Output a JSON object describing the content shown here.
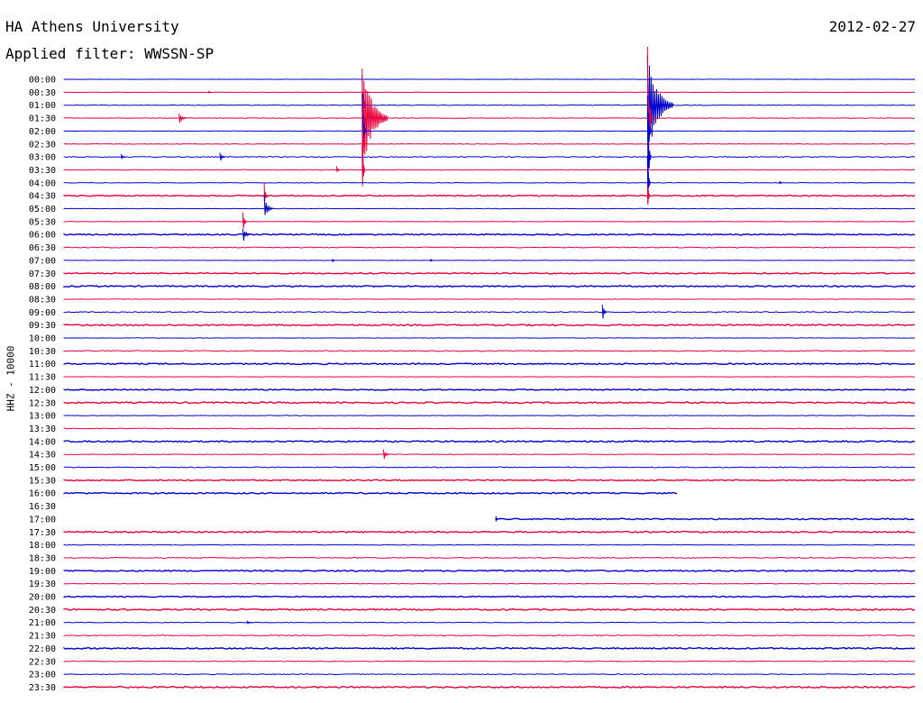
{
  "header": {
    "station": "HA Athens University",
    "date": "2012-02-27",
    "filter": "Applied filter: WWSSN-SP"
  },
  "chart_data": {
    "type": "line",
    "title": "HA Athens University",
    "channel_label": "HHZ - 10000",
    "colors": {
      "odd": "#0000cc",
      "even": "#e8003c"
    },
    "rows": [
      {
        "time": "00:00",
        "end": 1.0,
        "noise": 0.3,
        "events": []
      },
      {
        "time": "00:30",
        "end": 1.0,
        "noise": 0.3,
        "events": [
          {
            "x": 0.17,
            "amp": 2,
            "width": 0.002
          }
        ]
      },
      {
        "time": "01:00",
        "end": 1.0,
        "noise": 0.6,
        "events": [
          {
            "x": 0.35,
            "amp": 55,
            "width": 0.004
          },
          {
            "x": 0.685,
            "amp": 60,
            "width": 0.03
          },
          {
            "x": 0.7,
            "amp": 4,
            "width": 0.004
          }
        ]
      },
      {
        "time": "01:30",
        "end": 1.0,
        "noise": 0.6,
        "events": [
          {
            "x": 0.135,
            "amp": 8,
            "width": 0.008
          },
          {
            "x": 0.35,
            "amp": 65,
            "width": 0.03
          },
          {
            "x": 0.685,
            "amp": 85,
            "width": 0.005
          }
        ]
      },
      {
        "time": "02:00",
        "end": 1.0,
        "noise": 0.5,
        "events": [
          {
            "x": 0.35,
            "amp": 50,
            "width": 0.004
          },
          {
            "x": 0.685,
            "amp": 60,
            "width": 0.004
          }
        ]
      },
      {
        "time": "02:30",
        "end": 1.0,
        "noise": 0.6,
        "events": [
          {
            "x": 0.35,
            "amp": 55,
            "width": 0.003
          }
        ]
      },
      {
        "time": "03:00",
        "end": 1.0,
        "noise": 1.0,
        "events": [
          {
            "x": 0.067,
            "amp": 3,
            "width": 0.005
          },
          {
            "x": 0.183,
            "amp": 7,
            "width": 0.006
          },
          {
            "x": 0.685,
            "amp": 60,
            "width": 0.004
          }
        ]
      },
      {
        "time": "03:30",
        "end": 1.0,
        "noise": 0.6,
        "events": [
          {
            "x": 0.32,
            "amp": 4,
            "width": 0.004
          },
          {
            "x": 0.35,
            "amp": 45,
            "width": 0.003
          }
        ]
      },
      {
        "time": "04:00",
        "end": 1.0,
        "noise": 0.5,
        "events": [
          {
            "x": 0.84,
            "amp": 2,
            "width": 0.003
          },
          {
            "x": 0.685,
            "amp": 40,
            "width": 0.003
          }
        ]
      },
      {
        "time": "04:30",
        "end": 1.0,
        "noise": 1.2,
        "events": [
          {
            "x": 0.235,
            "amp": 14,
            "width": 0.004
          },
          {
            "x": 0.685,
            "amp": 18,
            "width": 0.003
          }
        ]
      },
      {
        "time": "05:00",
        "end": 1.0,
        "noise": 0.6,
        "events": [
          {
            "x": 0.235,
            "amp": 16,
            "width": 0.01
          }
        ]
      },
      {
        "time": "05:30",
        "end": 1.0,
        "noise": 0.4,
        "events": [
          {
            "x": 0.21,
            "amp": 14,
            "width": 0.004
          }
        ]
      },
      {
        "time": "06:00",
        "end": 1.0,
        "noise": 1.2,
        "events": [
          {
            "x": 0.21,
            "amp": 10,
            "width": 0.008
          }
        ]
      },
      {
        "time": "06:30",
        "end": 1.0,
        "noise": 1.0,
        "events": []
      },
      {
        "time": "07:00",
        "end": 1.0,
        "noise": 0.4,
        "events": [
          {
            "x": 0.315,
            "amp": 2,
            "width": 0.003
          },
          {
            "x": 0.43,
            "amp": 2,
            "width": 0.003
          }
        ]
      },
      {
        "time": "07:30",
        "end": 1.0,
        "noise": 1.2,
        "events": []
      },
      {
        "time": "08:00",
        "end": 1.0,
        "noise": 1.4,
        "events": []
      },
      {
        "time": "08:30",
        "end": 1.0,
        "noise": 0.4,
        "events": []
      },
      {
        "time": "09:00",
        "end": 1.0,
        "noise": 1.1,
        "events": [
          {
            "x": 0.632,
            "amp": 12,
            "width": 0.005
          }
        ]
      },
      {
        "time": "09:30",
        "end": 1.0,
        "noise": 1.5,
        "events": []
      },
      {
        "time": "10:00",
        "end": 1.0,
        "noise": 0.5,
        "events": []
      },
      {
        "time": "10:30",
        "end": 1.0,
        "noise": 1.0,
        "events": []
      },
      {
        "time": "11:00",
        "end": 1.0,
        "noise": 1.4,
        "events": []
      },
      {
        "time": "11:30",
        "end": 1.0,
        "noise": 0.4,
        "events": []
      },
      {
        "time": "12:00",
        "end": 1.0,
        "noise": 1.2,
        "events": []
      },
      {
        "time": "12:30",
        "end": 1.0,
        "noise": 1.5,
        "events": []
      },
      {
        "time": "13:00",
        "end": 1.0,
        "noise": 0.6,
        "events": []
      },
      {
        "time": "13:30",
        "end": 1.0,
        "noise": 0.8,
        "events": []
      },
      {
        "time": "14:00",
        "end": 1.0,
        "noise": 1.5,
        "events": []
      },
      {
        "time": "14:30",
        "end": 1.0,
        "noise": 0.6,
        "events": [
          {
            "x": 0.375,
            "amp": 8,
            "width": 0.006
          }
        ]
      },
      {
        "time": "15:00",
        "end": 1.0,
        "noise": 1.0,
        "events": []
      },
      {
        "time": "15:30",
        "end": 1.0,
        "noise": 1.2,
        "events": []
      },
      {
        "time": "16:00",
        "end": 0.72,
        "noise": 1.4,
        "events": []
      },
      {
        "time": "16:30",
        "end": 0.0,
        "noise": 0,
        "events": []
      },
      {
        "time": "17:00",
        "start": 0.507,
        "end": 1.0,
        "noise": 1.4,
        "events": [
          {
            "x": 0.507,
            "amp": 5,
            "width": 0.001
          }
        ]
      },
      {
        "time": "17:30",
        "end": 1.0,
        "noise": 1.5,
        "events": []
      },
      {
        "time": "18:00",
        "end": 1.0,
        "noise": 0.6,
        "events": []
      },
      {
        "time": "18:30",
        "end": 1.0,
        "noise": 1.0,
        "events": []
      },
      {
        "time": "19:00",
        "end": 1.0,
        "noise": 1.4,
        "events": []
      },
      {
        "time": "19:30",
        "end": 1.0,
        "noise": 0.6,
        "events": []
      },
      {
        "time": "20:00",
        "end": 1.0,
        "noise": 1.2,
        "events": []
      },
      {
        "time": "20:30",
        "end": 1.0,
        "noise": 1.5,
        "events": []
      },
      {
        "time": "21:00",
        "end": 1.0,
        "noise": 0.6,
        "events": [
          {
            "x": 0.215,
            "amp": 2,
            "width": 0.006
          }
        ]
      },
      {
        "time": "21:30",
        "end": 1.0,
        "noise": 1.0,
        "events": []
      },
      {
        "time": "22:00",
        "end": 1.0,
        "noise": 1.5,
        "events": []
      },
      {
        "time": "22:30",
        "end": 1.0,
        "noise": 0.6,
        "events": []
      },
      {
        "time": "23:00",
        "end": 1.0,
        "noise": 0.9,
        "events": []
      },
      {
        "time": "23:30",
        "end": 1.0,
        "noise": 1.6,
        "events": []
      }
    ]
  }
}
